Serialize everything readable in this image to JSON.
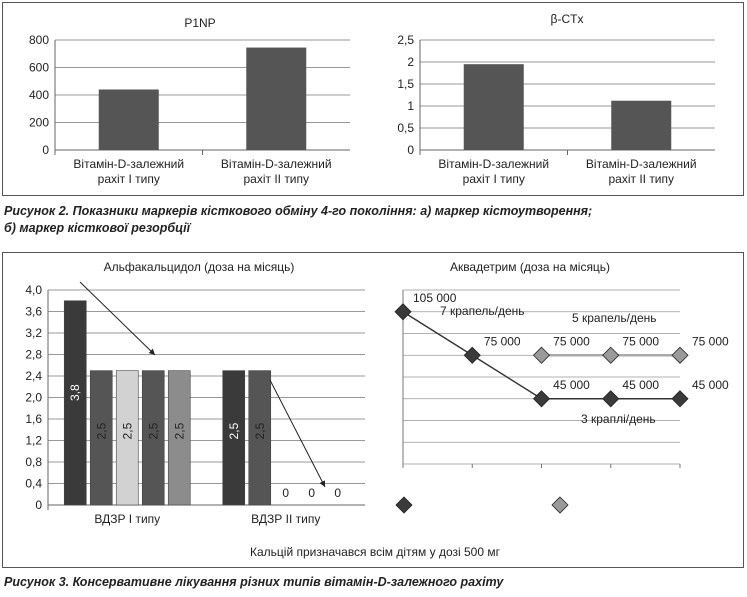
{
  "figure2": {
    "caption_line1": "Рисунок 2. Показники маркерів кісткового обміну 4-го покоління: а) маркер кістоутворення;",
    "caption_line2": "б) маркер кісткової резорбції"
  },
  "figure3": {
    "caption": "Рисунок 3. Консервативне лікування різних типів вітамін-D-залежного рахіту",
    "footnote": "Кальцій призначався всім дітям у дозі 500 мг"
  },
  "colors": {
    "bar_dark": "#555555",
    "bar_black": "#3a3a3a",
    "bar_light": "#d2d2d2",
    "bar_mid": "#8c8c8c",
    "marker_dark": "#3a3a3a",
    "marker_light": "#9a9a9a",
    "line_dark": "#333333",
    "line_light": "#aaaaaa",
    "grid": "#999999"
  },
  "chart_data": [
    {
      "id": "p1np",
      "type": "bar",
      "title": "P1NP",
      "categories": [
        [
          "Вітамін-D-залежний",
          "рахіт I типу"
        ],
        [
          "Вітамін-D-залежний",
          "рахіт II типу"
        ]
      ],
      "values": [
        440,
        745
      ],
      "yticks": [
        "0",
        "200",
        "400",
        "600",
        "800"
      ],
      "ylim": [
        0,
        800
      ],
      "grid": true
    },
    {
      "id": "bctx",
      "type": "bar",
      "title": "β-CTx",
      "categories": [
        [
          "Вітамін-D-залежний",
          "рахіт I типу"
        ],
        [
          "Вітамін-D-залежний",
          "рахіт II типу"
        ]
      ],
      "values": [
        1.95,
        1.12
      ],
      "yticks": [
        "0",
        "0,5",
        "1",
        "1,5",
        "2",
        "2,5"
      ],
      "ylim": [
        0,
        2.5
      ],
      "grid": true
    },
    {
      "id": "alfacalcidol",
      "type": "bar",
      "title": "Альфакальцидол (доза на місяць)",
      "categories": [
        "ВДЗР I типу",
        "ВДЗР II типу"
      ],
      "groups": [
        {
          "category": "ВДЗР I типу",
          "values": [
            3.8,
            2.5,
            2.5,
            2.5,
            2.5
          ],
          "labels": [
            "3,8",
            "2,5",
            "2,5",
            "2,5",
            "2,5"
          ]
        },
        {
          "category": "ВДЗР II типу",
          "values": [
            2.5,
            2.5,
            0,
            0,
            0
          ],
          "labels": [
            "2,5",
            "2,5",
            "0",
            "0",
            "0"
          ]
        }
      ],
      "yticks": [
        "0",
        "0,4",
        "0,8",
        "1,2",
        "1,6",
        "2,0",
        "2,4",
        "2,8",
        "3,2",
        "3,6",
        "4,0"
      ],
      "ylim": [
        0,
        4.0
      ],
      "grid": true
    },
    {
      "id": "aquadetrim",
      "type": "line",
      "title": "Аквадетрим (доза на місяць)",
      "x": [
        1,
        2,
        3,
        4,
        5
      ],
      "series": [
        {
          "values": [
            105000,
            75000,
            45000,
            45000,
            45000
          ],
          "labels": [
            "105 000",
            "75 000",
            "45 000",
            "45 000",
            "45 000"
          ]
        },
        {
          "values": [
            null,
            null,
            75000,
            75000,
            75000
          ],
          "labels": [
            "",
            "",
            "75 000",
            "75 000",
            "75 000"
          ]
        }
      ],
      "annotations": [
        "7 крапель/день",
        "5 крапель/день",
        "3 краплі/день"
      ],
      "ylim": [
        0,
        120000
      ],
      "grid": true
    }
  ]
}
